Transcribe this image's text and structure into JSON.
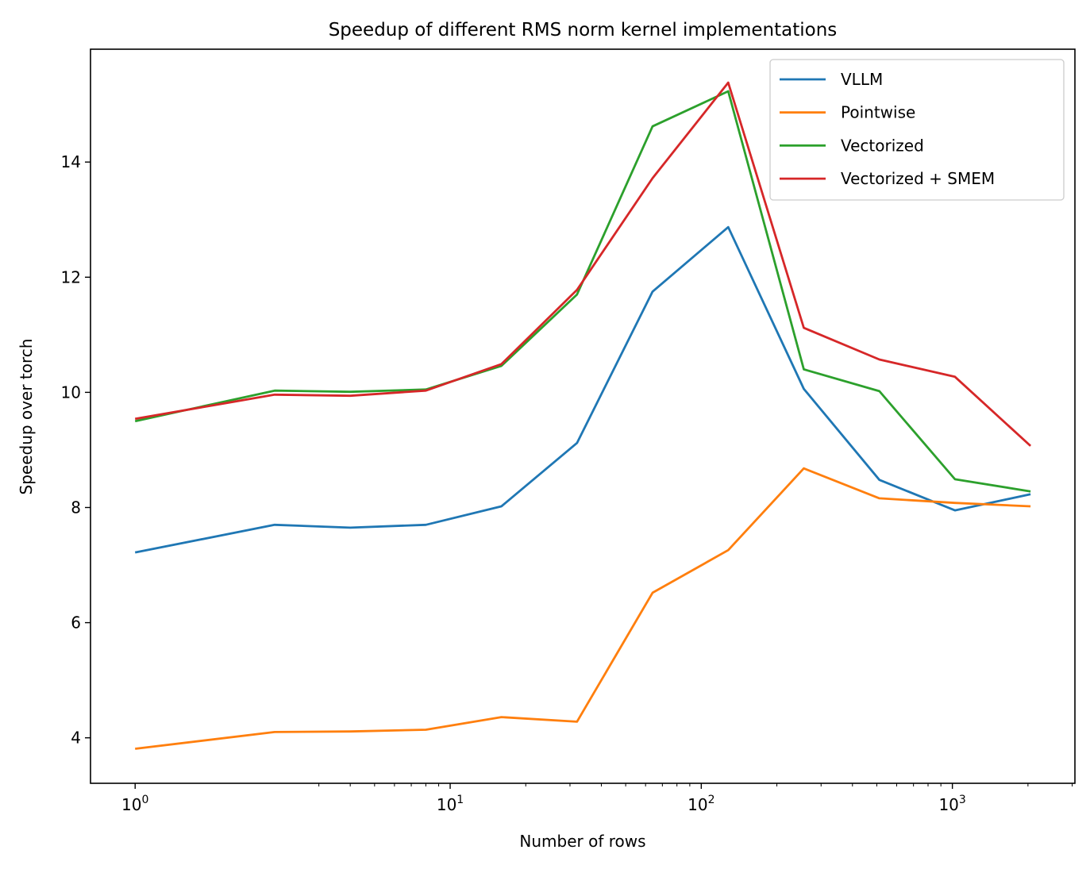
{
  "chart_data": {
    "type": "line",
    "title": "Speedup of different RMS norm kernel implementations",
    "xlabel": "Number of rows",
    "ylabel": "Speedup over torch",
    "xscale": "symlog",
    "xscale_linthresh": 2,
    "xlim": [
      0.68,
      3076
    ],
    "ylim": [
      3.21,
      15.96
    ],
    "grid": false,
    "legend_placement": "upper right",
    "x": [
      1,
      2,
      4,
      8,
      16,
      32,
      64,
      128,
      256,
      512,
      1024,
      2048
    ],
    "x_ticks": [
      1,
      10,
      100,
      1000
    ],
    "x_tick_labels": [
      {
        "base": "10",
        "exp": "0"
      },
      {
        "base": "10",
        "exp": "1"
      },
      {
        "base": "10",
        "exp": "2"
      },
      {
        "base": "10",
        "exp": "3"
      }
    ],
    "y_ticks": [
      4,
      6,
      8,
      10,
      12,
      14
    ],
    "y_tick_labels": [
      "4",
      "6",
      "8",
      "10",
      "12",
      "14"
    ],
    "series": [
      {
        "name": "VLLM",
        "color": "#1f77b4",
        "values": [
          7.22,
          7.7,
          7.65,
          7.7,
          8.02,
          9.12,
          11.75,
          12.87,
          10.06,
          8.48,
          7.95,
          8.23
        ]
      },
      {
        "name": "Pointwise",
        "color": "#ff7f0e",
        "values": [
          3.81,
          4.1,
          4.11,
          4.14,
          4.36,
          4.28,
          6.52,
          7.26,
          8.68,
          8.16,
          8.08,
          8.02
        ]
      },
      {
        "name": "Vectorized",
        "color": "#2ca02c",
        "values": [
          9.5,
          10.03,
          10.01,
          10.05,
          10.46,
          11.7,
          14.62,
          15.23,
          10.4,
          10.02,
          8.49,
          8.28
        ]
      },
      {
        "name": "Vectorized + SMEM",
        "color": "#d62728",
        "values": [
          9.54,
          9.96,
          9.94,
          10.03,
          10.49,
          11.78,
          13.72,
          15.38,
          11.12,
          10.57,
          10.27,
          9.07
        ]
      }
    ]
  }
}
